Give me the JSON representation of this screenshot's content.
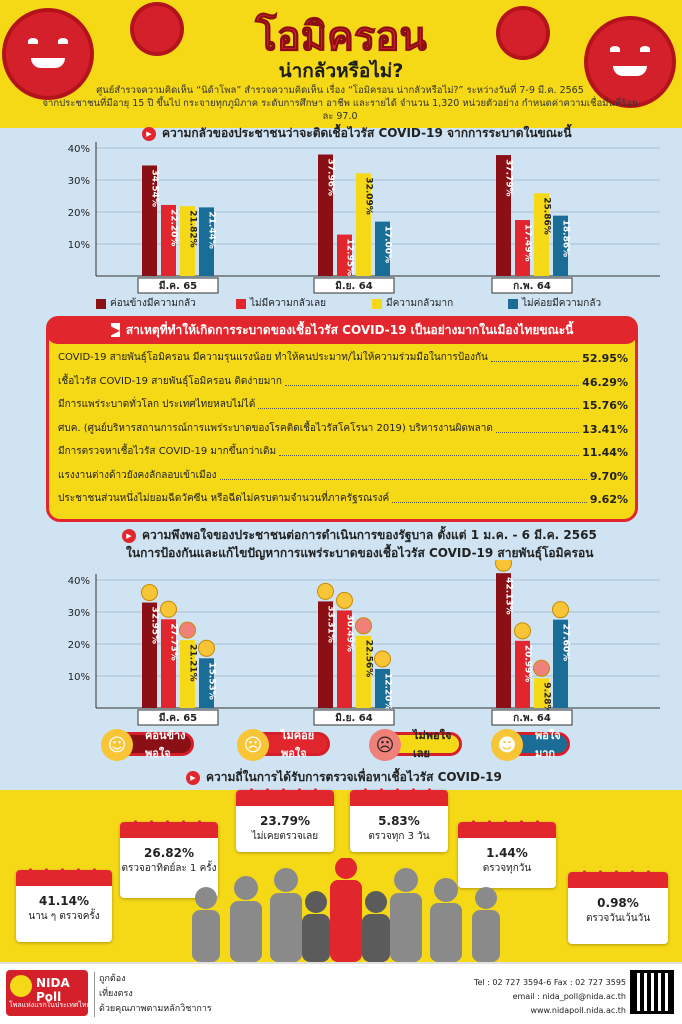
{
  "header": {
    "title": "โอมิครอน",
    "subtitle": "น่ากลัวหรือไม่?",
    "desc_line1": "ศูนย์สำรวจความคิดเห็น “นิด้าโพล” สำรวจความคิดเห็น เรื่อง “โอมิครอน น่ากลัวหรือไม่?” ระหว่างวันที่ 7-9 มี.ค. 2565",
    "desc_line2": "จากประชาชนที่มีอายุ 15 ปี ขึ้นไป กระจายทุกภูมิภาค ระดับการศึกษา อาชีพ และรายได้ จำนวน 1,320 หน่วยตัวอย่าง กำหนดค่าความเชื่อมั่นที่ร้อยละ 97.0",
    "virus_label": "OMICRON"
  },
  "section1": {
    "heading": "ความกลัวของประชาชนว่าจะติดเชื้อไวรัส COVID-19 จากการระบาดในขณะนี้"
  },
  "section2": {
    "heading": "สาเหตุที่ทำให้เกิดการระบาดของเชื้อไวรัส COVID-19 เป็นอย่างมากในเมืองไทยขณะนี้"
  },
  "section3": {
    "heading1": "ความพึงพอใจของประชาชนต่อการดำเนินการของรัฐบาล ตั้งแต่ 1 ม.ค. - 6 มี.ค. 2565",
    "heading2": "ในการป้องกันและแก้ไขปัญหาการแพร่ระบาดของเชื้อไวรัส COVID-19 สายพันธุ์โอมิครอน"
  },
  "section4": {
    "heading": "ความถี่ในการได้รับการตรวจเพื่อหาเชื้อไวรัส COVID-19"
  },
  "chart_data": [
    {
      "type": "bar",
      "categories": [
        "มี.ค. 65",
        "มิ.ย. 64",
        "ก.พ. 64"
      ],
      "ylim": [
        0,
        40
      ],
      "yticks": [
        "10%",
        "20%",
        "30%",
        "40%"
      ],
      "series": [
        {
          "name": "ค่อนข้างมีความกลัว",
          "color": "#8a1016",
          "values": [
            34.54,
            37.96,
            37.79
          ],
          "labels": [
            "34.54%",
            "37.96%",
            "37.79%"
          ]
        },
        {
          "name": "ไม่มีความกลัวเลย",
          "color": "#e2262d",
          "values": [
            22.2,
            12.95,
            17.49
          ],
          "labels": [
            "22.20%",
            "12.95%",
            "17.49%"
          ]
        },
        {
          "name": "มีความกลัวมาก",
          "color": "#f6d916",
          "values": [
            21.82,
            32.09,
            25.86
          ],
          "labels": [
            "21.82%",
            "32.09%",
            "25.86%"
          ]
        },
        {
          "name": "ไม่ค่อยมีความกลัว",
          "color": "#1a6d96",
          "values": [
            21.44,
            17.0,
            18.86
          ],
          "labels": [
            "21.44%",
            "17.00%",
            "18.86%"
          ]
        }
      ]
    },
    {
      "type": "table",
      "rows": [
        {
          "label": "COVID-19 สายพันธุ์โอมิครอน มีความรุนแรงน้อย ทำให้คนประมาท/ไม่ให้ความร่วมมือในการป้องกัน",
          "value": "52.95%"
        },
        {
          "label": "เชื้อไวรัส COVID-19 สายพันธุ์โอมิครอน ติดง่ายมาก",
          "value": "46.29%"
        },
        {
          "label": "มีการแพร่ระบาดทั่วโลก ประเทศไทยหลบไม่ได้",
          "value": "15.76%"
        },
        {
          "label": "ศบค. (ศูนย์บริหารสถานการณ์การแพร่ระบาดของโรคติดเชื้อไวรัสโคโรนา 2019) บริหารงานผิดพลาด",
          "value": "13.41%"
        },
        {
          "label": "มีการตรวจหาเชื้อไวรัส COVID-19 มากขึ้นกว่าเดิม",
          "value": "11.44%"
        },
        {
          "label": "แรงงานต่างด้าวยังคงลักลอบเข้าเมือง",
          "value": "9.70%"
        },
        {
          "label": "ประชาชนส่วนหนึ่งไม่ยอมฉีดวัคซีน หรือฉีดไม่ครบตามจำนวนที่ภาครัฐรณรงค์",
          "value": "9.62%"
        }
      ]
    },
    {
      "type": "bar",
      "categories": [
        "มี.ค. 65",
        "มิ.ย. 64",
        "ก.พ. 64"
      ],
      "ylim": [
        0,
        40
      ],
      "yticks": [
        "10%",
        "20%",
        "30%",
        "40%"
      ],
      "series": [
        {
          "name": "ค่อนข้างพอใจ",
          "color": "#8a1016",
          "values": [
            32.95,
            33.31,
            42.13
          ],
          "labels": [
            "32.95%",
            "33.31%",
            "42.13%"
          ]
        },
        {
          "name": "ไม่ค่อยพอใจ",
          "color": "#e2262d",
          "values": [
            27.73,
            30.49,
            20.99
          ],
          "labels": [
            "27.73%",
            "30.49%",
            "20.99%"
          ]
        },
        {
          "name": "ไม่พอใจเลย",
          "color": "#f6d916",
          "values": [
            21.21,
            22.56,
            9.28
          ],
          "labels": [
            "21.21%",
            "22.56%",
            "9.28%"
          ]
        },
        {
          "name": "พอใจมาก",
          "color": "#1a6d96",
          "values": [
            15.53,
            12.2,
            27.6
          ],
          "labels": [
            "15.53%",
            "12.20%",
            "27.60%"
          ]
        }
      ]
    },
    {
      "type": "table",
      "rows": [
        {
          "value": "41.14%",
          "label": "นาน ๆ ตรวจครั้ง"
        },
        {
          "value": "26.82%",
          "label": "ตรวจอาทิตย์ละ 1 ครั้ง"
        },
        {
          "value": "23.79%",
          "label": "ไม่เคยตรวจเลย"
        },
        {
          "value": "5.83%",
          "label": "ตรวจทุก 3 วัน"
        },
        {
          "value": "1.44%",
          "label": "ตรวจทุกวัน"
        },
        {
          "value": "0.98%",
          "label": "ตรวจวันเว้นวัน"
        }
      ]
    }
  ],
  "footer": {
    "brand": "NIDA Poll",
    "brand_tag": "โพลแห่งแรกในประเทศไทย",
    "slogan": [
      "ถูกต้อง",
      "เที่ยงตรง",
      "ด้วยคุณภาพตามหลักวิชาการ"
    ],
    "contact": [
      "Tel : 02 727 3594-6 Fax : 02 727 3595",
      "email : nida_poll@nida.ac.th",
      "www.nidapoll.nida.ac.th"
    ]
  }
}
